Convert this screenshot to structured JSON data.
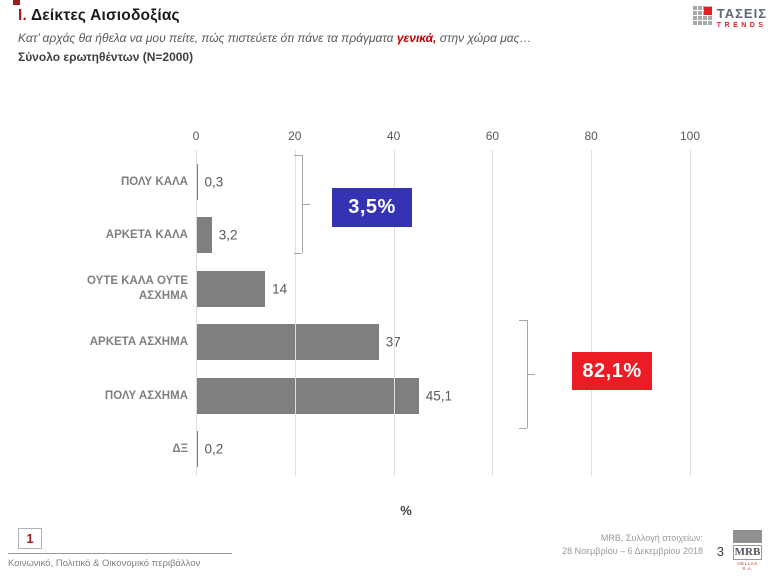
{
  "slide": {
    "title_prefix": "Ι.",
    "title": "Δείκτες Αισιοδοξίας",
    "subtitle_pre": "Κατ’ αρχάς θα ήθελα να μου πείτε, πώς πιστεύετε ότι πάνε τα πράγματα ",
    "subtitle_highlight": "γενικά,",
    "subtitle_post": " στην χώρα μας…",
    "sample_line": "Σύνολο ερωτηθέντων (N=2000)"
  },
  "brand": {
    "logo_text": "ΤΑΣΕΙΣ",
    "logo_subtext": "TRENDS",
    "mrb_logo_text": "MRB",
    "mrb_logo_subtext": "HELLAS S.A."
  },
  "chart_data": {
    "type": "bar",
    "orientation": "horizontal",
    "categories": [
      "ΠΟΛΥ ΚΑΛΑ",
      "ΑΡΚΕΤΑ ΚΑΛΑ",
      "ΟΥΤΕ ΚΑΛΑ ΟΥΤΕ ΑΣΧΗΜΑ",
      "ΑΡΚΕΤΑ ΑΣΧΗΜΑ",
      "ΠΟΛΥ ΑΣΧΗΜΑ",
      "ΔΞ"
    ],
    "values": [
      0.3,
      3.2,
      14,
      37,
      45.1,
      0.2
    ],
    "value_labels": [
      "0,3",
      "3,2",
      "14",
      "37",
      "45,1",
      "0,2"
    ],
    "xticks": [
      "0",
      "20",
      "40",
      "60",
      "80",
      "100"
    ],
    "xtick_values": [
      0,
      20,
      40,
      60,
      80,
      100
    ],
    "xlim": [
      0,
      100
    ],
    "xlabel": "%",
    "grid": true,
    "legend": "none",
    "bar_color": "#7f7f7f",
    "annotations": [
      {
        "label": "3,5%",
        "value": 3.5,
        "color": "#3333b3",
        "covers": [
          "ΠΟΛΥ ΚΑΛΑ",
          "ΑΡΚΕΤΑ ΚΑΛΑ"
        ]
      },
      {
        "label": "82,1%",
        "value": 82.1,
        "color": "#ec1c24",
        "covers": [
          "ΑΡΚΕΤΑ ΑΣΧΗΜΑ",
          "ΠΟΛΥ ΑΣΧΗΜΑ"
        ]
      }
    ]
  },
  "footer": {
    "section_number": "1",
    "section_title": "Κοινωνικό, Πολιτικό & Οικονομικό περιβάλλον",
    "source_line1": "MRB, Συλλογή στοιχείων:",
    "source_line2": "28 Νοεμβρίου – 6 Δεκεμβρίου 2018",
    "page_number": "3"
  }
}
